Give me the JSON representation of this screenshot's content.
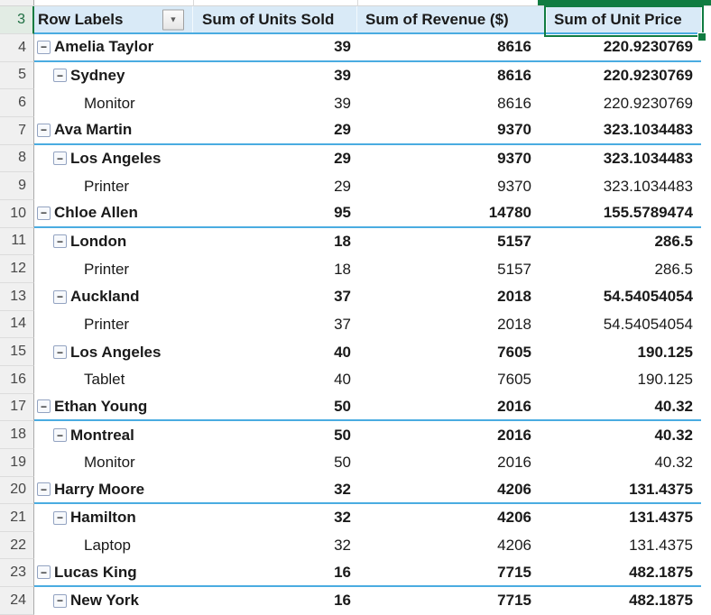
{
  "app": "excel-pivot-table",
  "colors": {
    "header_fill": "#D9EAF7",
    "pivot_rule_blue": "#4AACE1",
    "selection_green": "#107C41",
    "gutter_fill": "#F0F0F0",
    "selected_gutter_fill": "#E2ECE4"
  },
  "icons": {
    "collapse": "−",
    "filter_dropdown": "▼"
  },
  "table": {
    "header_row_number": "3",
    "headers": {
      "label": "Row Labels",
      "units": "Sum of Units Sold",
      "revenue": "Sum of Revenue ($)",
      "price": "Sum of Unit Price"
    },
    "selected_header": "Sum of Unit Price",
    "rows": [
      {
        "num": 4,
        "level": 1,
        "bold": true,
        "sep": true,
        "label": "Amelia Taylor",
        "units": "39",
        "revenue": "8616",
        "price": "220.9230769"
      },
      {
        "num": 5,
        "level": 2,
        "bold": true,
        "sep": false,
        "label": "Sydney",
        "units": "39",
        "revenue": "8616",
        "price": "220.9230769"
      },
      {
        "num": 6,
        "level": 3,
        "bold": false,
        "sep": false,
        "label": "Monitor",
        "units": "39",
        "revenue": "8616",
        "price": "220.9230769"
      },
      {
        "num": 7,
        "level": 1,
        "bold": true,
        "sep": true,
        "label": "Ava Martin",
        "units": "29",
        "revenue": "9370",
        "price": "323.1034483"
      },
      {
        "num": 8,
        "level": 2,
        "bold": true,
        "sep": false,
        "label": "Los Angeles",
        "units": "29",
        "revenue": "9370",
        "price": "323.1034483"
      },
      {
        "num": 9,
        "level": 3,
        "bold": false,
        "sep": false,
        "label": "Printer",
        "units": "29",
        "revenue": "9370",
        "price": "323.1034483"
      },
      {
        "num": 10,
        "level": 1,
        "bold": true,
        "sep": true,
        "label": "Chloe Allen",
        "units": "95",
        "revenue": "14780",
        "price": "155.5789474"
      },
      {
        "num": 11,
        "level": 2,
        "bold": true,
        "sep": false,
        "label": "London",
        "units": "18",
        "revenue": "5157",
        "price": "286.5"
      },
      {
        "num": 12,
        "level": 3,
        "bold": false,
        "sep": false,
        "label": "Printer",
        "units": "18",
        "revenue": "5157",
        "price": "286.5"
      },
      {
        "num": 13,
        "level": 2,
        "bold": true,
        "sep": false,
        "label": "Auckland",
        "units": "37",
        "revenue": "2018",
        "price": "54.54054054"
      },
      {
        "num": 14,
        "level": 3,
        "bold": false,
        "sep": false,
        "label": "Printer",
        "units": "37",
        "revenue": "2018",
        "price": "54.54054054"
      },
      {
        "num": 15,
        "level": 2,
        "bold": true,
        "sep": false,
        "label": "Los Angeles",
        "units": "40",
        "revenue": "7605",
        "price": "190.125"
      },
      {
        "num": 16,
        "level": 3,
        "bold": false,
        "sep": false,
        "label": "Tablet",
        "units": "40",
        "revenue": "7605",
        "price": "190.125"
      },
      {
        "num": 17,
        "level": 1,
        "bold": true,
        "sep": true,
        "label": "Ethan Young",
        "units": "50",
        "revenue": "2016",
        "price": "40.32"
      },
      {
        "num": 18,
        "level": 2,
        "bold": true,
        "sep": false,
        "label": "Montreal",
        "units": "50",
        "revenue": "2016",
        "price": "40.32"
      },
      {
        "num": 19,
        "level": 3,
        "bold": false,
        "sep": false,
        "label": "Monitor",
        "units": "50",
        "revenue": "2016",
        "price": "40.32"
      },
      {
        "num": 20,
        "level": 1,
        "bold": true,
        "sep": true,
        "label": "Harry Moore",
        "units": "32",
        "revenue": "4206",
        "price": "131.4375"
      },
      {
        "num": 21,
        "level": 2,
        "bold": true,
        "sep": false,
        "label": "Hamilton",
        "units": "32",
        "revenue": "4206",
        "price": "131.4375"
      },
      {
        "num": 22,
        "level": 3,
        "bold": false,
        "sep": false,
        "label": "Laptop",
        "units": "32",
        "revenue": "4206",
        "price": "131.4375"
      },
      {
        "num": 23,
        "level": 1,
        "bold": true,
        "sep": true,
        "label": "Lucas King",
        "units": "16",
        "revenue": "7715",
        "price": "482.1875"
      },
      {
        "num": 24,
        "level": 2,
        "bold": true,
        "sep": false,
        "label": "New York",
        "units": "16",
        "revenue": "7715",
        "price": "482.1875"
      }
    ]
  }
}
